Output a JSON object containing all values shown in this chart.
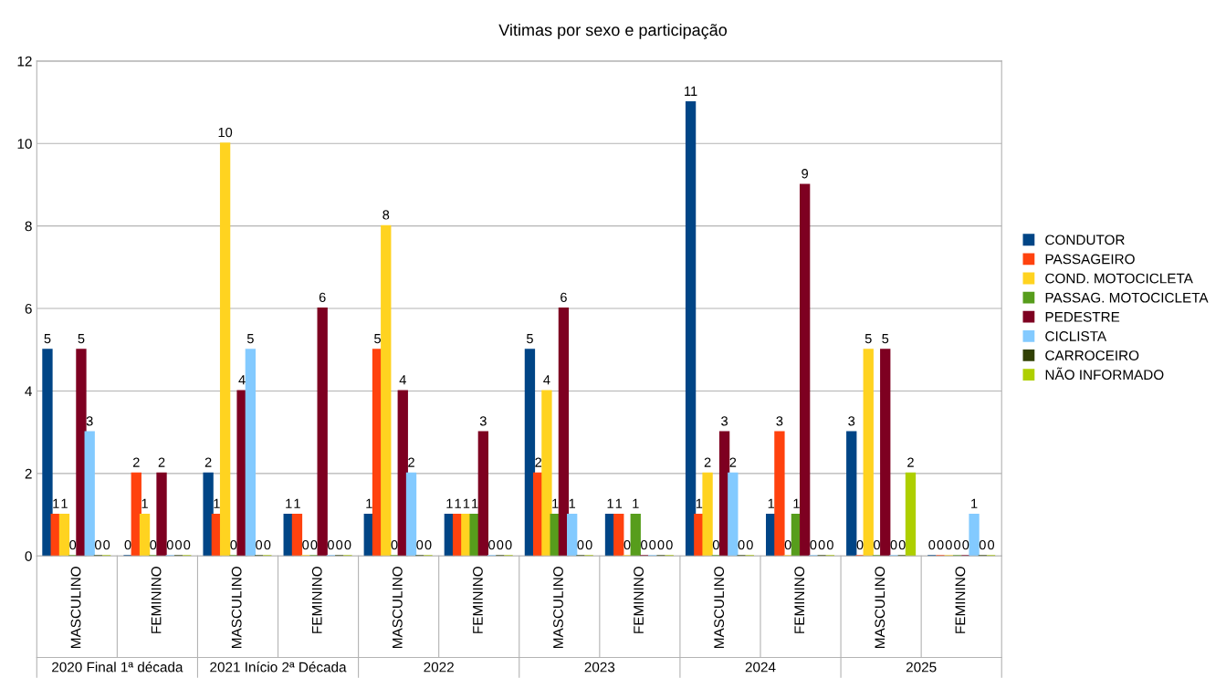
{
  "chart_data": {
    "type": "bar",
    "title": "Vitimas por sexo e participação",
    "categories": [
      "MASCULINO",
      "FEMININO",
      "MASCULINO",
      "FEMININO",
      "MASCULINO",
      "FEMININO",
      "MASCULINO",
      "FEMININO",
      "MASCULINO",
      "FEMININO",
      "MASCULINO",
      "FEMININO"
    ],
    "annotations": [
      "2020 Final 1ª década",
      "2021 Início 2ª Década",
      "2022",
      "2023",
      "2024",
      "2025"
    ],
    "series": [
      {
        "name": "CONDUTOR",
        "color": "#004586",
        "values": [
          5,
          0,
          2,
          1,
          1,
          1,
          5,
          1,
          11,
          1,
          3,
          0
        ]
      },
      {
        "name": "PASSAGEIRO",
        "color": "#ff420e",
        "values": [
          1,
          2,
          1,
          1,
          5,
          1,
          2,
          1,
          1,
          3,
          0,
          0
        ]
      },
      {
        "name": "COND. MOTOCICLETA",
        "color": "#ffd320",
        "values": [
          1,
          1,
          10,
          0,
          8,
          1,
          4,
          0,
          2,
          0,
          5,
          0
        ]
      },
      {
        "name": "PASSAG. MOTOCICLETA",
        "color": "#579d1c",
        "values": [
          0,
          0,
          0,
          0,
          0,
          1,
          1,
          1,
          0,
          1,
          0,
          0
        ]
      },
      {
        "name": "PEDESTRE",
        "color": "#7e0021",
        "values": [
          5,
          2,
          4,
          6,
          4,
          3,
          6,
          0,
          3,
          9,
          5,
          0
        ]
      },
      {
        "name": "CICLISTA",
        "color": "#83caff",
        "values": [
          3,
          0,
          5,
          0,
          2,
          0,
          1,
          0,
          2,
          0,
          0,
          1
        ]
      },
      {
        "name": "CARROCEIRO",
        "color": "#314004",
        "values": [
          0,
          0,
          0,
          0,
          0,
          0,
          0,
          0,
          0,
          0,
          0,
          0
        ]
      },
      {
        "name": "NÃO INFORMADO",
        "color": "#aecf00",
        "values": [
          0,
          0,
          0,
          0,
          0,
          0,
          0,
          0,
          0,
          0,
          2,
          0
        ]
      }
    ],
    "ylim": [
      0,
      12
    ],
    "yticks": [
      0,
      2,
      4,
      6,
      8,
      10,
      12
    ],
    "grid": "y",
    "legend": "right",
    "data_labels": true
  }
}
